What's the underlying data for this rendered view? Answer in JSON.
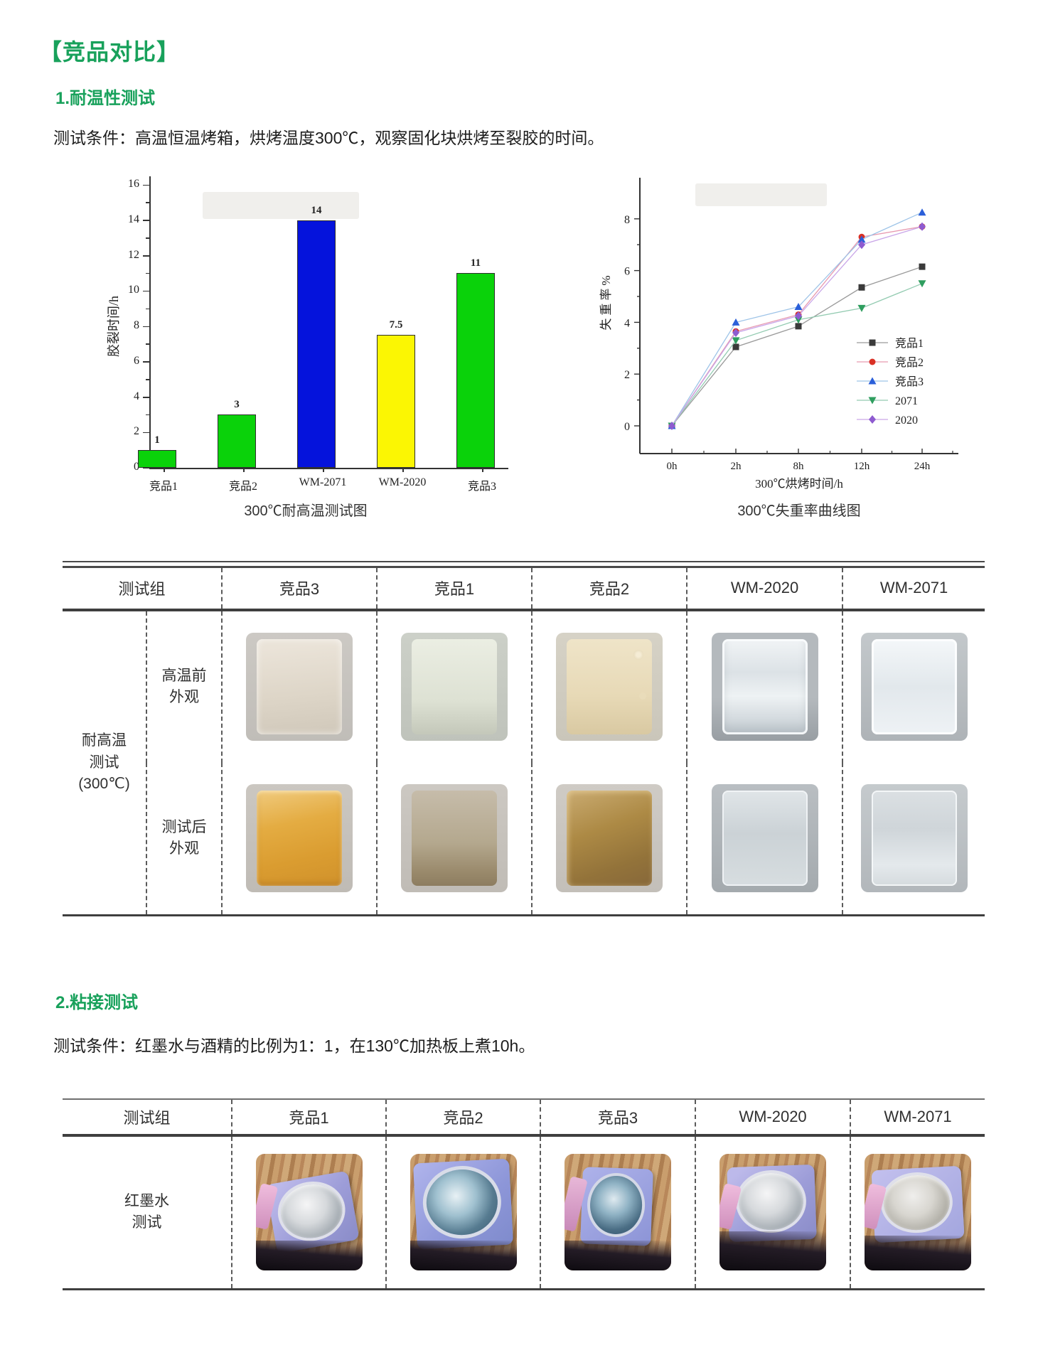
{
  "page": {
    "title": "【竞品对比】"
  },
  "section1": {
    "heading": "1.耐温性测试",
    "condition": "测试条件：高温恒温烤箱，烘烤温度300℃，观察固化块烘烤至裂胶的时间。"
  },
  "section2": {
    "heading": "2.粘接测试",
    "condition": "测试条件：红墨水与酒精的比例为1：1，在130℃加热板上煮10h。"
  },
  "chart_data": [
    {
      "type": "bar",
      "caption": "300℃耐高温测试图",
      "categories": [
        "竞品1",
        "竞品2",
        "WM-2071",
        "WM-2020",
        "竞品3"
      ],
      "values": [
        1,
        3,
        14,
        7.5,
        11
      ],
      "value_labels": [
        "1",
        "3",
        "14",
        "7.5",
        "11"
      ],
      "bar_colors": [
        "#0ad20a",
        "#0ad20a",
        "#0513dc",
        "#fbf603",
        "#0ad20a"
      ],
      "ylabel": "胶裂时间/h",
      "xlabel": "",
      "ylim": [
        0,
        16
      ],
      "ytick_step": 2,
      "grid": false
    },
    {
      "type": "line",
      "caption": "300℃失重率曲线图",
      "x": [
        "0h",
        "2h",
        "8h",
        "12h",
        "24h"
      ],
      "xlabel": "300℃烘烤时间/h",
      "ylabel": "失重率%",
      "ylim": [
        0,
        8
      ],
      "ytick_step": 2,
      "grid": false,
      "legend_position": "right-middle",
      "series": [
        {
          "name": "竞品1",
          "marker": "square",
          "color": "#3a3a3a",
          "line_color": "#9a9a9a",
          "values": [
            0,
            3.05,
            3.85,
            5.35,
            6.15
          ]
        },
        {
          "name": "竞品2",
          "marker": "circle",
          "color": "#d93025",
          "line_color": "#e79ab0",
          "values": [
            0,
            3.65,
            4.3,
            7.3,
            7.7
          ]
        },
        {
          "name": "竞品3",
          "marker": "triangle-up",
          "color": "#2b5fd9",
          "line_color": "#9ec4e8",
          "values": [
            0,
            4.0,
            4.6,
            7.2,
            8.25
          ]
        },
        {
          "name": "2071",
          "marker": "triangle-down",
          "color": "#2f9e5f",
          "line_color": "#93cbb1",
          "values": [
            0,
            3.3,
            4.1,
            4.55,
            5.5
          ]
        },
        {
          "name": "2020",
          "marker": "diamond",
          "color": "#8e5bd0",
          "line_color": "#c9a6e8",
          "values": [
            0,
            3.6,
            4.25,
            7.0,
            7.7
          ]
        }
      ]
    }
  ],
  "table1": {
    "header": [
      "测试组",
      "竞品3",
      "竞品1",
      "竞品2",
      "WM-2020",
      "WM-2071"
    ],
    "group_lines": "耐高温\n测试\n(300℃)",
    "rows": [
      {
        "label_lines": "高温前\n外观",
        "photos": [
          "cube-cream",
          "cube-sage",
          "cube-tan",
          "cube-clear",
          "cube-clear-bright"
        ]
      },
      {
        "label_lines": "测试后\n外观",
        "photos": [
          "cube-amber",
          "cube-taupe",
          "cube-brown",
          "cube-clear-after",
          "cube-clear-after2"
        ]
      }
    ]
  },
  "table2": {
    "header": [
      "测试组",
      "竞品1",
      "竞品2",
      "竞品3",
      "WM-2020",
      "WM-2071"
    ],
    "rows": [
      {
        "label_lines": "红墨水\n测试",
        "photos": [
          "chip chip-silver",
          "chip chip-blue-large",
          "chip chip-blue-narrow",
          "chip chip-silver-dark",
          "chip chip-silver-light"
        ]
      }
    ]
  }
}
